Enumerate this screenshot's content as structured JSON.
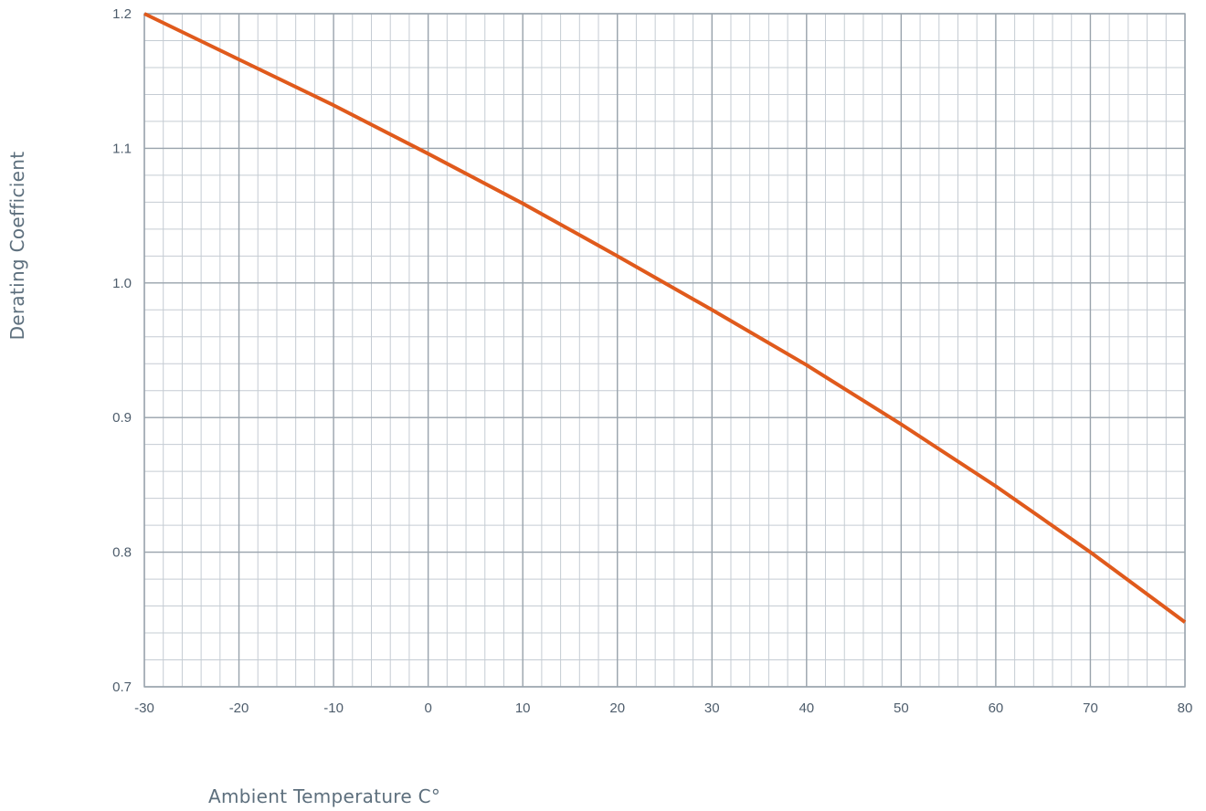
{
  "chart_data": {
    "type": "line",
    "title": "",
    "xlabel": "Ambient Temperature C°",
    "ylabel": "Derating Coefficient",
    "xlim": [
      -30,
      80
    ],
    "ylim": [
      0.7,
      1.2
    ],
    "x_ticks": [
      -30,
      -20,
      -10,
      0,
      10,
      20,
      30,
      40,
      50,
      60,
      70,
      80
    ],
    "x_tick_labels": [
      "-30",
      "-20",
      "-10",
      "0",
      "10",
      "20",
      "30",
      "40",
      "50",
      "60",
      "70",
      "80"
    ],
    "y_ticks": [
      0.7,
      0.8,
      0.9,
      1.0,
      1.1,
      1.2
    ],
    "y_tick_labels": [
      "0.7",
      "0.8",
      "0.9",
      "1.0",
      "1.1",
      "1.2"
    ],
    "x_minor_step": 2,
    "y_minor_step": 0.02,
    "grid": true,
    "legend": "none",
    "series": [
      {
        "color": "#e05a1c",
        "x": [
          -30,
          -20,
          -10,
          0,
          10,
          20,
          30,
          40,
          50,
          60,
          70,
          80
        ],
        "values": [
          1.2,
          1.166,
          1.132,
          1.096,
          1.059,
          1.02,
          0.98,
          0.939,
          0.895,
          0.849,
          0.8,
          0.748
        ]
      }
    ]
  }
}
